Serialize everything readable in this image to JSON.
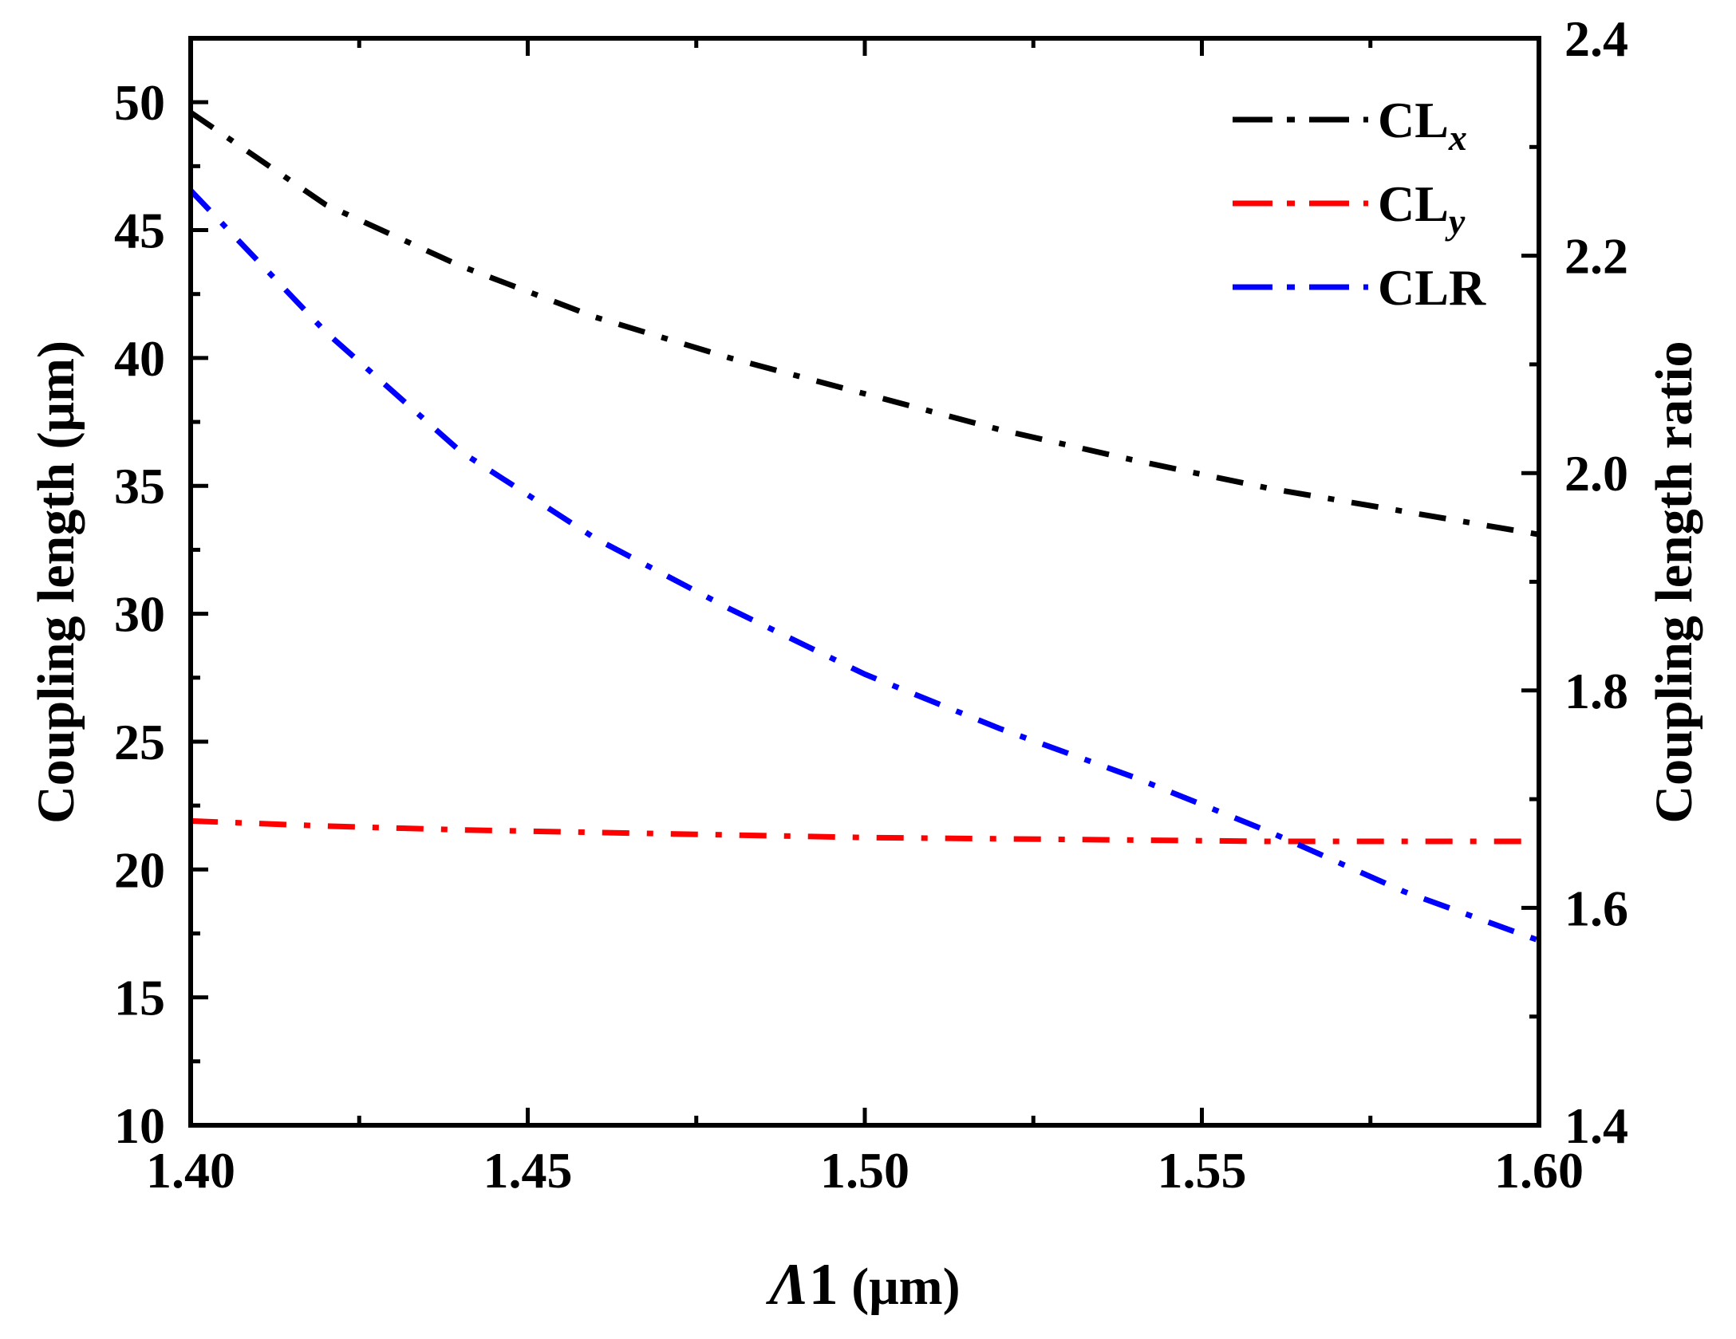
{
  "chart_data": {
    "type": "line",
    "xlabel": {
      "symbol": "Λ",
      "subscript": "1",
      "unit": " (μm)"
    },
    "ylabel_left": "Coupling length (μm)",
    "ylabel_right": "Coupling length ratio",
    "xlim": [
      1.4,
      1.6
    ],
    "ylim_left": [
      10,
      52.5
    ],
    "ylim_right": [
      1.4,
      2.4
    ],
    "x_ticks": [
      "1.40",
      "1.45",
      "1.50",
      "1.55",
      "1.60"
    ],
    "y_left_ticks": [
      "10",
      "15",
      "20",
      "25",
      "30",
      "35",
      "40",
      "45",
      "50"
    ],
    "y_right_ticks": [
      "1.4",
      "1.6",
      "1.8",
      "2.0",
      "2.2",
      "2.4"
    ],
    "legend_position": "top-right",
    "series": [
      {
        "name": "CL",
        "subscript": "x",
        "color": "#000000",
        "axis": "left",
        "x": [
          1.4,
          1.42,
          1.44,
          1.46,
          1.48,
          1.5,
          1.52,
          1.54,
          1.56,
          1.58,
          1.6
        ],
        "values": [
          49.6,
          46.0,
          43.6,
          41.6,
          40.0,
          38.6,
          37.2,
          36.0,
          34.9,
          34.0,
          33.1
        ]
      },
      {
        "name": "CL",
        "subscript": "y",
        "color": "#ff0000",
        "axis": "left",
        "x": [
          1.4,
          1.42,
          1.44,
          1.46,
          1.48,
          1.5,
          1.52,
          1.54,
          1.56,
          1.58,
          1.6
        ],
        "values": [
          21.9,
          21.7,
          21.55,
          21.45,
          21.35,
          21.25,
          21.2,
          21.15,
          21.1,
          21.1,
          21.1
        ]
      },
      {
        "name": "CLR",
        "subscript": "",
        "color": "#0000ff",
        "axis": "right",
        "x": [
          1.4,
          1.42,
          1.44,
          1.46,
          1.48,
          1.5,
          1.52,
          1.54,
          1.56,
          1.58,
          1.6
        ],
        "values": [
          2.26,
          2.13,
          2.02,
          1.94,
          1.875,
          1.815,
          1.765,
          1.72,
          1.67,
          1.615,
          1.57
        ]
      }
    ]
  }
}
